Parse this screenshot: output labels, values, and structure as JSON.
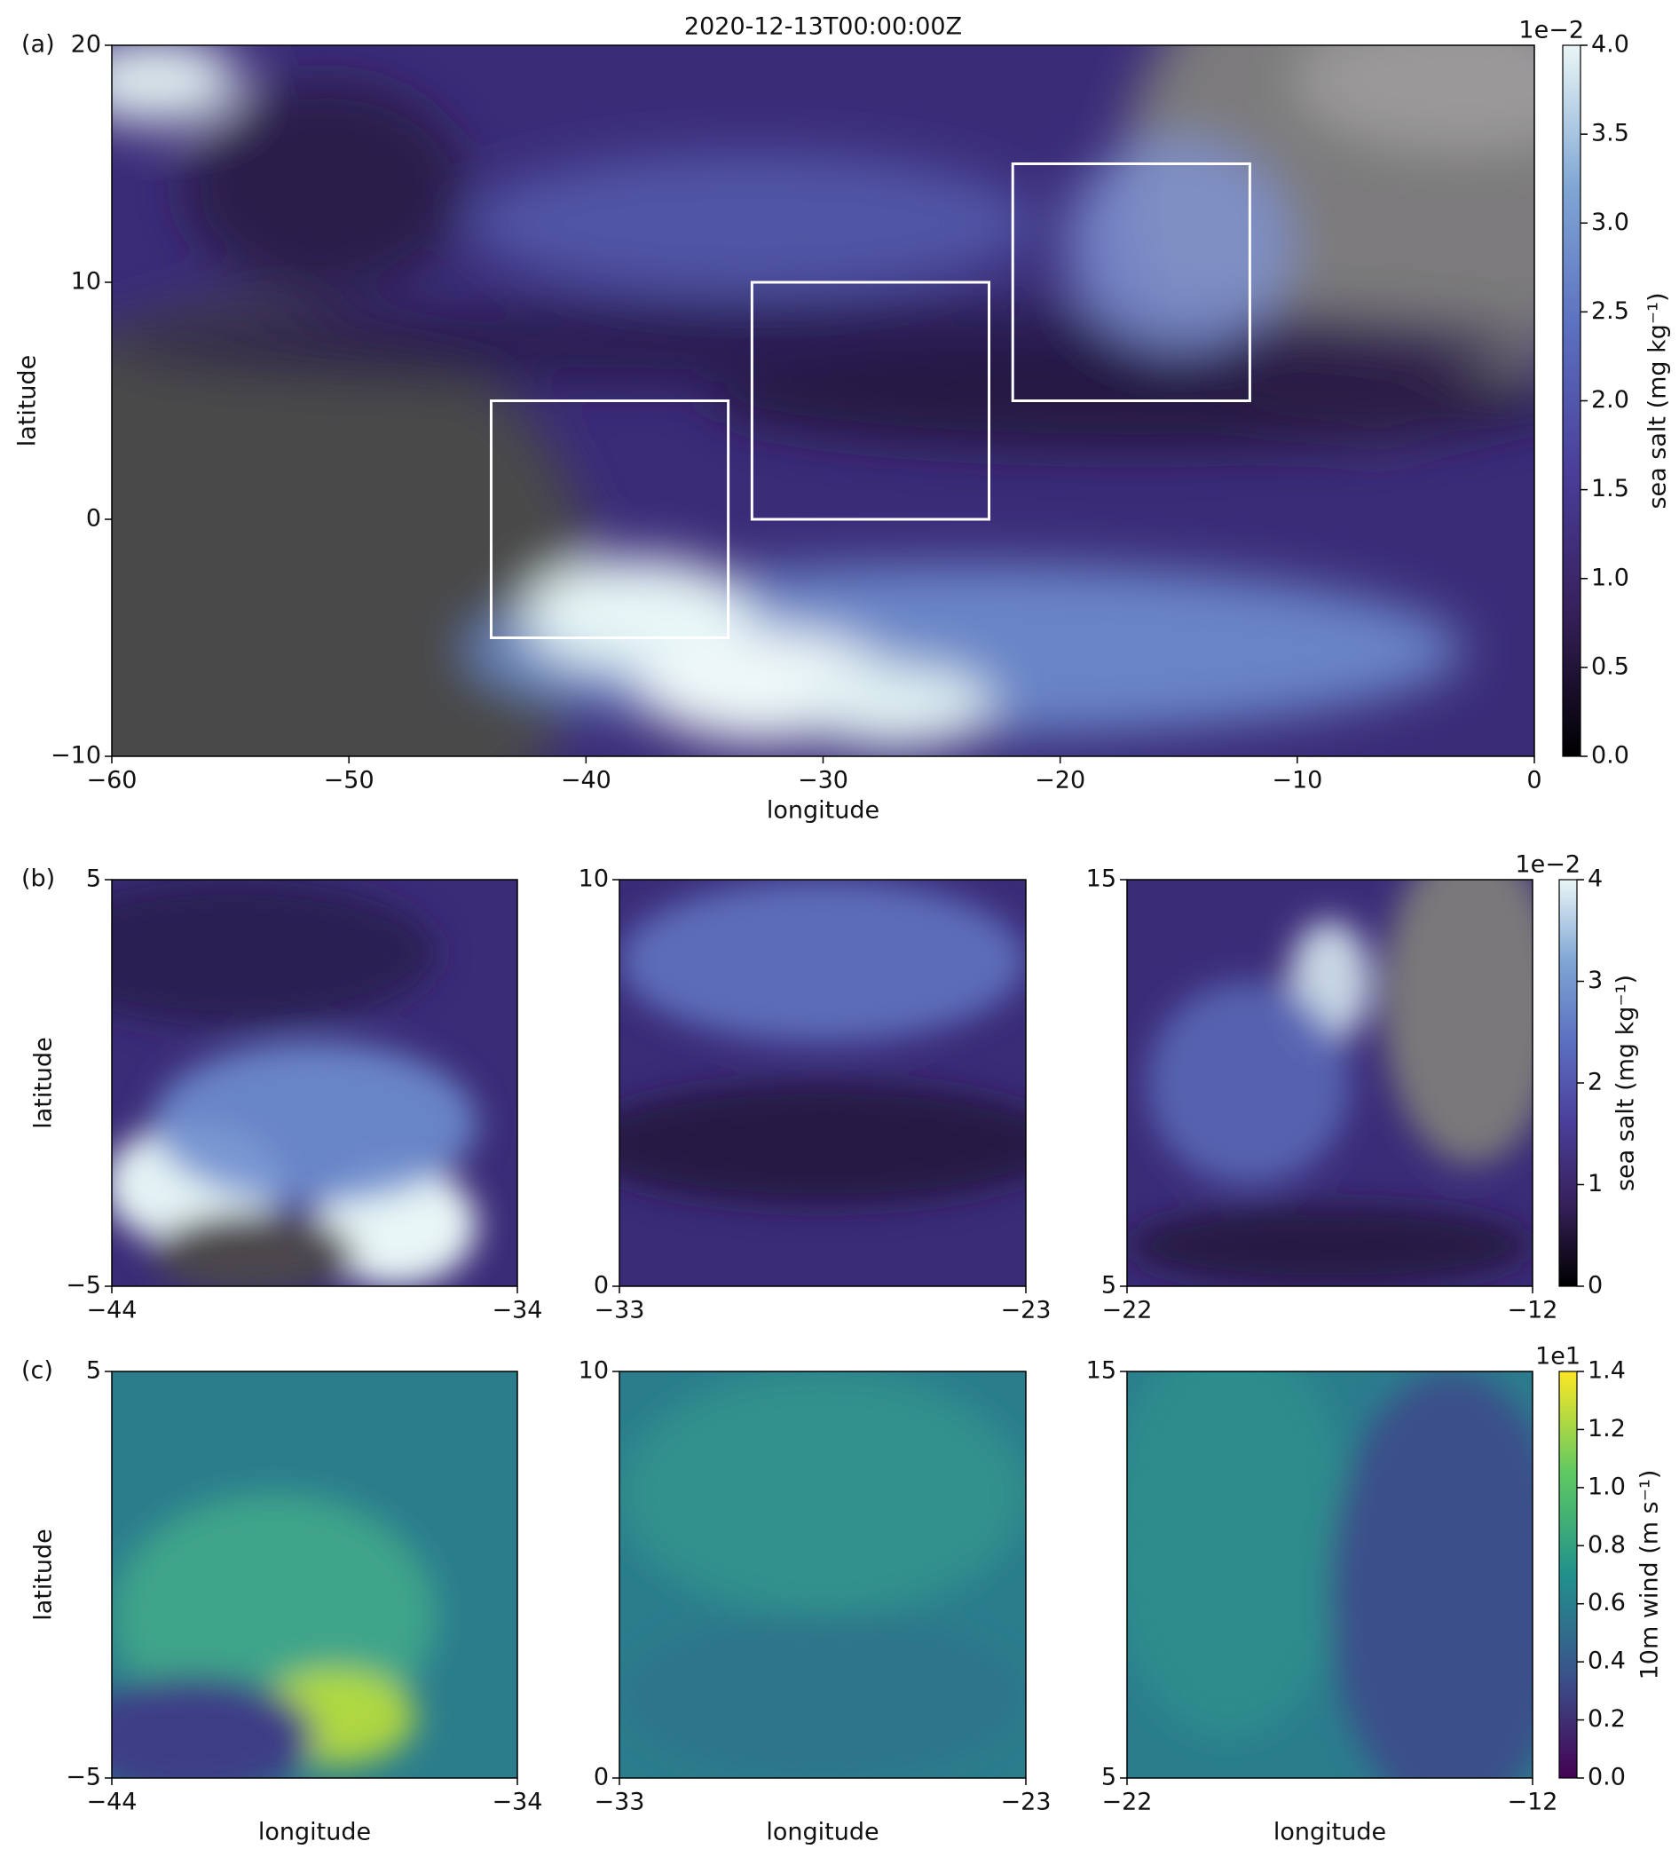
{
  "chart_data": [
    {
      "type": "map",
      "panel_label": "(a)",
      "title": "2020-12-13T00:00:00Z",
      "xlabel": "longitude",
      "ylabel": "latitude",
      "xlim": [
        -60,
        0
      ],
      "ylim": [
        -10,
        20
      ],
      "xticks": [
        {
          "value": -60,
          "label": "−60"
        },
        {
          "value": -50,
          "label": "−50"
        },
        {
          "value": -40,
          "label": "−40"
        },
        {
          "value": -30,
          "label": "−30"
        },
        {
          "value": -20,
          "label": "−20"
        },
        {
          "value": -10,
          "label": "−10"
        },
        0
      ],
      "yticks": [
        {
          "value": -10,
          "label": "−10"
        },
        0,
        10,
        20
      ],
      "boxes": [
        {
          "xlim": [
            -44,
            -34
          ],
          "ylim": [
            -5,
            5
          ]
        },
        {
          "xlim": [
            -33,
            -23
          ],
          "ylim": [
            0,
            10
          ]
        },
        {
          "xlim": [
            -22,
            -12
          ],
          "ylim": [
            5,
            15
          ]
        }
      ],
      "box_color": "#ffffff",
      "colorbar": {
        "label": "sea salt (mg kg⁻¹)",
        "offset_label": "1e−2",
        "lim": [
          0,
          4
        ],
        "ticks": [
          {
            "value": 0,
            "label": "0.0"
          },
          0.5,
          {
            "value": 1,
            "label": "1.0"
          },
          1.5,
          {
            "value": 2,
            "label": "2.0"
          },
          2.5,
          {
            "value": 3,
            "label": "3.0"
          },
          3.5,
          {
            "value": 4,
            "label": "4.0"
          }
        ],
        "colors": [
          "#000000",
          "#36205a",
          "#4a3e9a",
          "#5b6fc0",
          "#7fa6d4",
          "#eaf6f6"
        ]
      }
    },
    {
      "type": "map",
      "panel_label": "(b)",
      "ylabel": "latitude",
      "xlim": [
        -44,
        -34
      ],
      "ylim": [
        -5,
        5
      ],
      "xticks": [
        {
          "value": -44,
          "label": "−44"
        },
        {
          "value": -34,
          "label": "−34"
        }
      ],
      "yticks": [
        {
          "value": -5,
          "label": "−5"
        },
        5
      ]
    },
    {
      "type": "map",
      "xlim": [
        -33,
        -23
      ],
      "ylim": [
        0,
        10
      ],
      "xticks": [
        {
          "value": -33,
          "label": "−33"
        },
        {
          "value": -23,
          "label": "−23"
        }
      ],
      "yticks": [
        0,
        10
      ]
    },
    {
      "type": "map",
      "xlim": [
        -22,
        -12
      ],
      "ylim": [
        5,
        15
      ],
      "xticks": [
        {
          "value": -22,
          "label": "−22"
        },
        {
          "value": -12,
          "label": "−12"
        }
      ],
      "yticks": [
        5,
        15
      ],
      "colorbar": {
        "label": "sea salt (mg kg⁻¹)",
        "offset_label": "1e−2",
        "lim": [
          0,
          4
        ],
        "ticks": [
          0,
          1,
          2,
          3,
          4
        ],
        "colors": [
          "#000000",
          "#36205a",
          "#4a3e9a",
          "#5b6fc0",
          "#7fa6d4",
          "#eaf6f6"
        ]
      }
    },
    {
      "type": "map",
      "panel_label": "(c)",
      "xlabel": "longitude",
      "ylabel": "latitude",
      "xlim": [
        -44,
        -34
      ],
      "ylim": [
        -5,
        5
      ],
      "xticks": [
        {
          "value": -44,
          "label": "−44"
        },
        {
          "value": -34,
          "label": "−34"
        }
      ],
      "yticks": [
        {
          "value": -5,
          "label": "−5"
        },
        5
      ]
    },
    {
      "type": "map",
      "xlabel": "longitude",
      "xlim": [
        -33,
        -23
      ],
      "ylim": [
        0,
        10
      ],
      "xticks": [
        {
          "value": -33,
          "label": "−33"
        },
        {
          "value": -23,
          "label": "−23"
        }
      ],
      "yticks": [
        0,
        10
      ]
    },
    {
      "type": "map",
      "xlabel": "longitude",
      "xlim": [
        -22,
        -12
      ],
      "ylim": [
        5,
        15
      ],
      "xticks": [
        {
          "value": -22,
          "label": "−22"
        },
        {
          "value": -12,
          "label": "−12"
        }
      ],
      "yticks": [
        5,
        15
      ],
      "colorbar": {
        "label": "10m wind (m s⁻¹)",
        "offset_label": "1e1",
        "lim": [
          0,
          1.4
        ],
        "ticks": [
          {
            "value": 0,
            "label": "0.0"
          },
          0.2,
          0.4,
          0.6,
          0.8,
          {
            "value": 1,
            "label": "1.0"
          },
          1.2,
          1.4
        ],
        "colors": [
          "#440154",
          "#3b528b",
          "#21918c",
          "#5ec962",
          "#fde725"
        ]
      }
    }
  ]
}
